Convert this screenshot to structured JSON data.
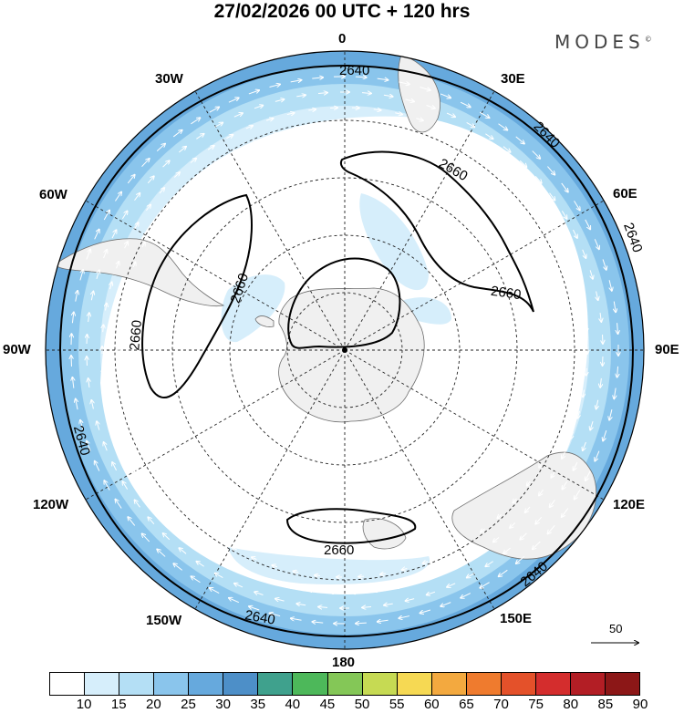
{
  "title": "27/02/2026  00 UTC  + 120 hrs",
  "brand": "MODES",
  "brand_mark": "©",
  "longitude_labels": {
    "lon_0": "0",
    "lon_30e": "30E",
    "lon_60e": "60E",
    "lon_90e": "90E",
    "lon_120e": "120E",
    "lon_150e": "150E",
    "lon_180": "180",
    "lon_150w": "150W",
    "lon_120w": "120W",
    "lon_90w": "90W",
    "lon_60w": "60W",
    "lon_30w": "30W"
  },
  "contour_labels": {
    "outer_top": "2640",
    "outer_ne": "2640",
    "outer_e": "2640",
    "outer_se": "2640",
    "outer_s": "2640",
    "outer_w": "2640",
    "nw_lobe_a": "2660",
    "nw_lobe_b": "2660",
    "ne_lobe_a": "2660",
    "ne_lobe_b": "2660",
    "south_lobe": "2660"
  },
  "reference_vector": {
    "label": "50"
  },
  "colorbar": {
    "ticks": [
      "10",
      "15",
      "20",
      "25",
      "30",
      "35",
      "40",
      "45",
      "50",
      "55",
      "60",
      "65",
      "70",
      "75",
      "80",
      "85",
      "90"
    ],
    "colors": [
      "#ffffff",
      "#d6eefb",
      "#b4dff5",
      "#8ac5ec",
      "#66a9dd",
      "#4d8fc8",
      "#3fa18d",
      "#4db85a",
      "#84c757",
      "#c6da53",
      "#f6d953",
      "#f3a93f",
      "#ef7b2e",
      "#e4512a",
      "#d42d2d",
      "#b31e25",
      "#8c1717"
    ]
  },
  "wind_speed_colors": {
    "band_10_15": "#d6eefb",
    "band_15_20": "#b4dff5",
    "band_20_25": "#8ac5ec",
    "band_25_30": "#66a9dd"
  },
  "land_color": "#f0f0f0"
}
